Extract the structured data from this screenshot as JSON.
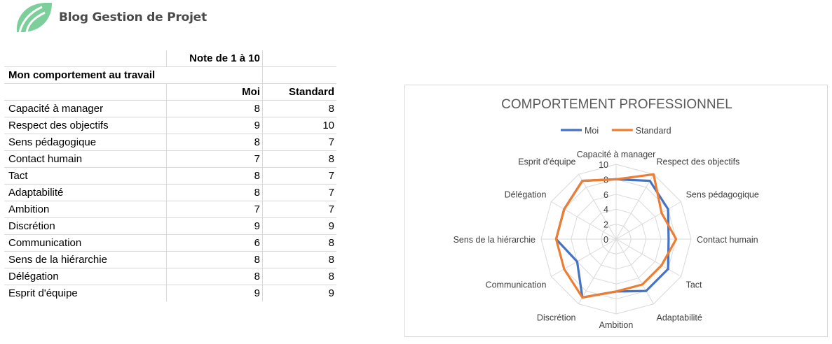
{
  "brand": {
    "name": "Blog Gestion de Projet",
    "colors": {
      "leaf": "#7ccf9a",
      "leaf_dark": "#5bbf83",
      "text": "#4a4a4a"
    }
  },
  "table": {
    "header_note": "Note de 1 à 10",
    "section_title": "Mon comportement au travail",
    "col_moi": "Moi",
    "col_standard": "Standard",
    "rows": [
      {
        "label": "Capacité à manager",
        "moi": "8",
        "standard": "8"
      },
      {
        "label": "Respect des objectifs",
        "moi": "9",
        "standard": "10"
      },
      {
        "label": "Sens pédagogique",
        "moi": "8",
        "standard": "7"
      },
      {
        "label": "Contact humain",
        "moi": "7",
        "standard": "8"
      },
      {
        "label": "Tact",
        "moi": "8",
        "standard": "7"
      },
      {
        "label": "Adaptabilité",
        "moi": "8",
        "standard": "7"
      },
      {
        "label": "Ambition",
        "moi": "7",
        "standard": "7"
      },
      {
        "label": "Discrétion",
        "moi": "9",
        "standard": "9"
      },
      {
        "label": "Communication",
        "moi": "6",
        "standard": "8"
      },
      {
        "label": "Sens de la hiérarchie",
        "moi": "8",
        "standard": "8"
      },
      {
        "label": "Délégation",
        "moi": "8",
        "standard": "8"
      },
      {
        "label": "Esprit d'équipe",
        "moi": "9",
        "standard": "9"
      }
    ]
  },
  "chart_data": {
    "type": "radar",
    "title": "COMPORTEMENT PROFESSIONNEL",
    "categories": [
      "Capacité à manager",
      "Respect des objectifs",
      "Sens pédagogique",
      "Contact humain",
      "Tact",
      "Adaptabilité",
      "Ambition",
      "Discrétion",
      "Communication",
      "Sens de la hiérarchie",
      "Délégation",
      "Esprit d'équipe"
    ],
    "series": [
      {
        "name": "Moi",
        "color": "#4472c4",
        "values": [
          8,
          9,
          8,
          7,
          8,
          8,
          7,
          9,
          6,
          8,
          8,
          9
        ]
      },
      {
        "name": "Standard",
        "color": "#ed7d31",
        "values": [
          8,
          10,
          7,
          8,
          7,
          7,
          7,
          9,
          8,
          8,
          8,
          9
        ]
      }
    ],
    "rlim": [
      0,
      10
    ],
    "ticks": [
      "0",
      "2",
      "4",
      "6",
      "8",
      "10"
    ],
    "grid": true,
    "legend": "top"
  }
}
